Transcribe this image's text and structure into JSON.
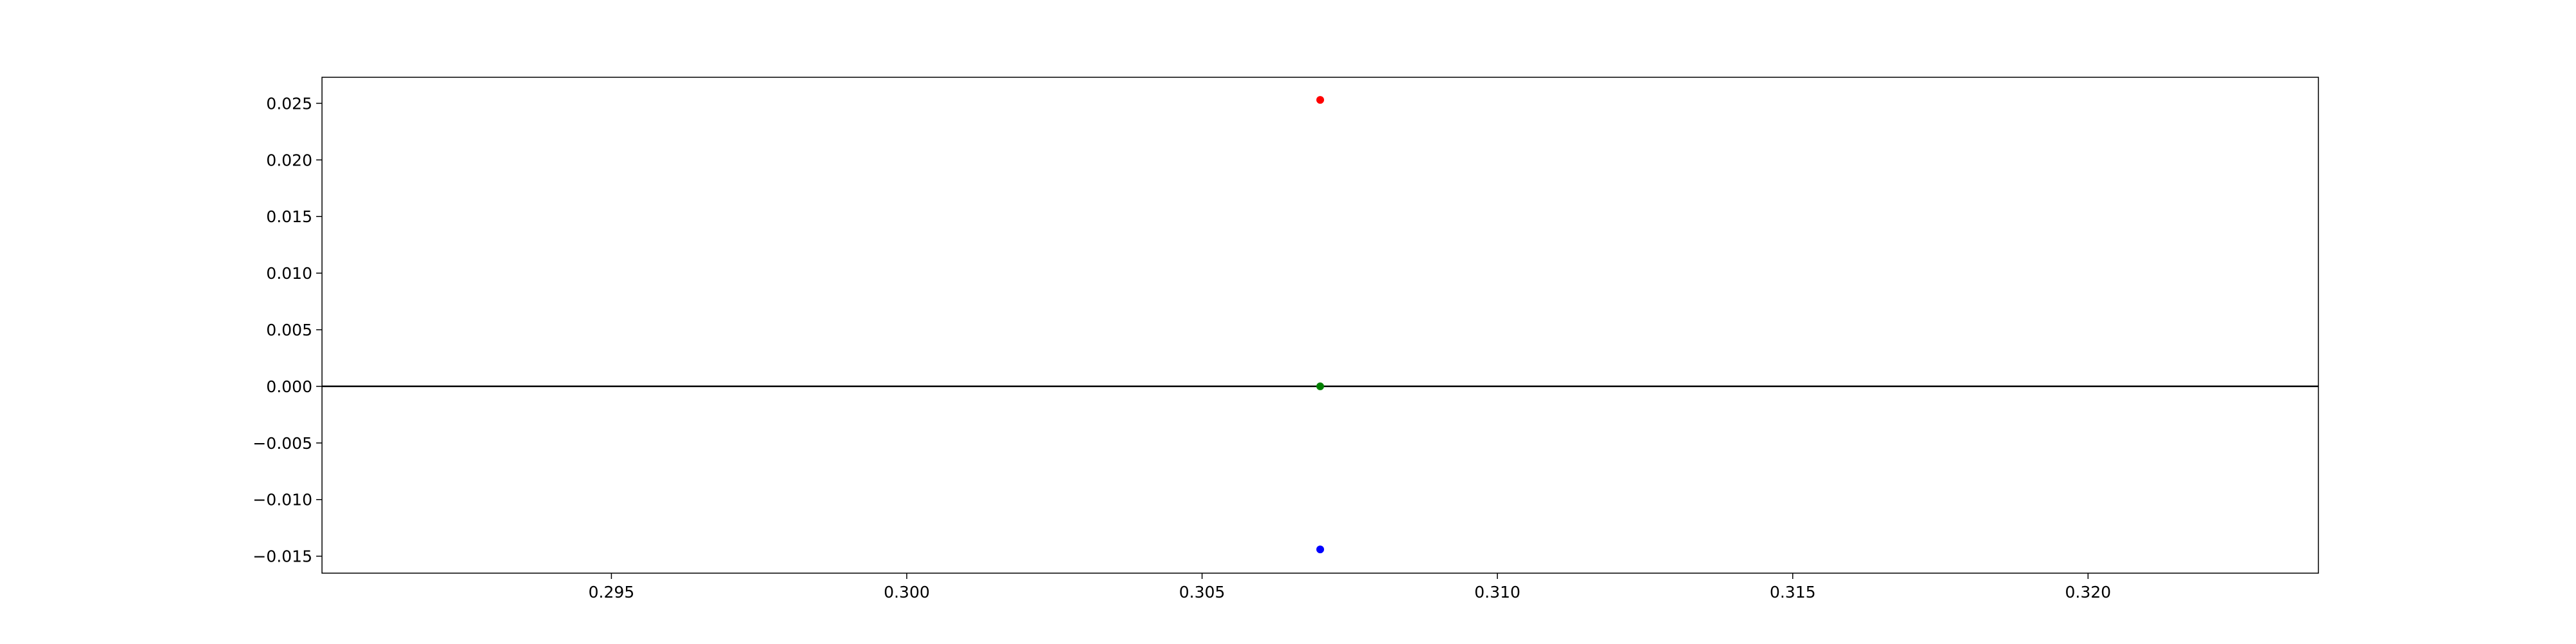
{
  "chart_data": {
    "type": "scatter",
    "title": "",
    "xlabel": "",
    "ylabel": "",
    "xlim": [
      0.2901,
      0.3239
    ],
    "ylim": [
      -0.0165,
      0.0273
    ],
    "x_ticks": [
      0.295,
      0.3,
      0.305,
      0.31,
      0.315,
      0.32
    ],
    "x_tick_labels": [
      "0.295",
      "0.300",
      "0.305",
      "0.310",
      "0.315",
      "0.320"
    ],
    "y_ticks": [
      -0.015,
      -0.01,
      -0.005,
      0.0,
      0.005,
      0.01,
      0.015,
      0.02,
      0.025
    ],
    "y_tick_labels": [
      "−0.015",
      "−0.010",
      "−0.005",
      "0.000",
      "0.005",
      "0.010",
      "0.015",
      "0.020",
      "0.025"
    ],
    "hline": 0.0,
    "hline_color": "#000000",
    "grid": false,
    "legend": "none",
    "points": [
      {
        "x": 0.307,
        "y": 0.0253,
        "color": "#ff0000"
      },
      {
        "x": 0.307,
        "y": 0.0,
        "color": "#008000"
      },
      {
        "x": 0.307,
        "y": -0.0144,
        "color": "#0000ff"
      }
    ]
  }
}
